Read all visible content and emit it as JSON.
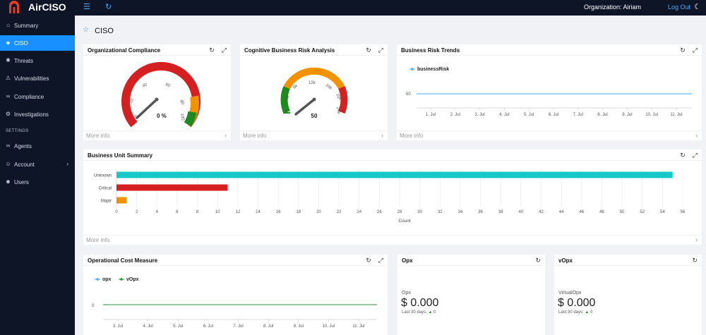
{
  "app": {
    "brand": "AirCISO",
    "organization": "Organization: Airiam",
    "logout": "Log Out"
  },
  "sidebar": {
    "items": [
      {
        "label": "Summary",
        "icon": "home-icon"
      },
      {
        "label": "CISO",
        "icon": "shield-icon"
      },
      {
        "label": "Threats",
        "icon": "bug-icon"
      },
      {
        "label": "Vulnerabilities",
        "icon": "user-warning-icon"
      },
      {
        "label": "Compliance",
        "icon": "link-icon"
      },
      {
        "label": "Investigations",
        "icon": "gear-icon"
      }
    ],
    "settings_label": "SETTINGS",
    "settings_items": [
      {
        "label": "Agents",
        "icon": "link-icon"
      },
      {
        "label": "Account",
        "icon": "user-icon"
      },
      {
        "label": "Users",
        "icon": "users-icon"
      }
    ]
  },
  "page": {
    "title": "CISO"
  },
  "cards": {
    "compliance": {
      "title": "Organizational Compliance",
      "more": "More info",
      "value_text": "0 %",
      "value": 0,
      "ticks": [
        "0",
        "20",
        "40",
        "60",
        "80",
        "100"
      ]
    },
    "risk": {
      "title": "Cognitive Business Risk Analysis",
      "more": "More info",
      "value_text": "50",
      "value": 50,
      "ticks": [
        "0",
        "4k",
        "8k",
        "12k",
        "16k",
        "20k",
        "24k"
      ]
    },
    "trends": {
      "title": "Business Risk Trends",
      "more": "More info",
      "legend": "businessRisk",
      "y_tick": "50"
    },
    "bu": {
      "title": "Business Unit Summary",
      "more": "More info",
      "xlabel": "Count"
    },
    "opcost": {
      "title": "Operational Cost Measure",
      "legend1": "opx",
      "legend2": "vOpx",
      "y_tick": "0"
    },
    "opx": {
      "title": "Opx",
      "label": "Opx",
      "value": "$ 0.000",
      "sub": "Last 30 days:",
      "delta": "0"
    },
    "vopx": {
      "title": "vOpx",
      "label": "VirtualOpx",
      "value": "$ 0.000",
      "sub": "Last 30 days:",
      "delta": "0"
    }
  },
  "chart_data": [
    {
      "type": "bar",
      "orientation": "horizontal",
      "categories": [
        "Unknown",
        "Critical",
        "Major"
      ],
      "values": [
        55,
        11,
        1
      ],
      "xlabel": "Count",
      "xlim": [
        0,
        56
      ],
      "x_ticks": [
        0,
        2,
        4,
        6,
        8,
        10,
        12,
        14,
        16,
        18,
        20,
        22,
        24,
        26,
        28,
        30,
        32,
        34,
        36,
        38,
        40,
        42,
        44,
        46,
        48,
        50,
        52,
        54,
        56
      ],
      "colors": [
        "#16c9c9",
        "#d42020",
        "#f39200"
      ],
      "grid": true
    },
    {
      "type": "line",
      "legend": [
        "businessRisk"
      ],
      "x": [
        "1. Jul",
        "2. Jul",
        "3. Jul",
        "4. Jul",
        "5. Jul",
        "6. Jul",
        "7. Jul",
        "8. Jul",
        "9. Jul",
        "10. Jul",
        "11. Jul"
      ],
      "series": [
        {
          "name": "businessRisk",
          "values": [
            50,
            50,
            50,
            50,
            50,
            50,
            50,
            50,
            50,
            50,
            50
          ],
          "color": "#4aa8f0"
        }
      ],
      "y_ticks": [
        50
      ]
    },
    {
      "type": "line",
      "legend": [
        "opx",
        "vOpx"
      ],
      "x": [
        "3. Jul",
        "4. Jul",
        "5. Jul",
        "6. Jul",
        "7. Jul",
        "8. Jul",
        "9. Jul",
        "10. Jul",
        "11. Jul"
      ],
      "series": [
        {
          "name": "opx",
          "values": [
            0,
            0,
            0,
            0,
            0,
            0,
            0,
            0,
            0
          ],
          "color": "#4aa8f0"
        },
        {
          "name": "vOpx",
          "values": [
            0,
            0,
            0,
            0,
            0,
            0,
            0,
            0,
            0
          ],
          "color": "#2e8b3e"
        }
      ],
      "y_ticks": [
        0
      ]
    }
  ]
}
